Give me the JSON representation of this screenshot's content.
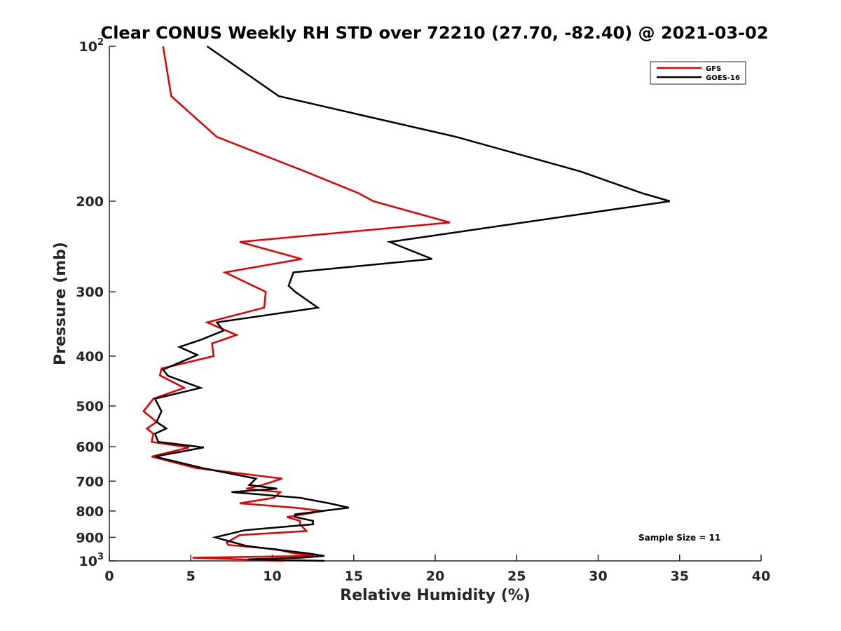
{
  "chart_data": {
    "type": "line",
    "title": "Clear CONUS Weekly RH STD over 72210 (27.70, -82.40) @ 2021-03-02",
    "xlabel": "Relative Humidity (%)",
    "ylabel": "Pressure (mb)",
    "xlim": [
      0,
      40
    ],
    "ylim": [
      100,
      1000
    ],
    "y_scale": "log",
    "y_reversed": true,
    "x_ticks": [
      "0",
      "5",
      "10",
      "15",
      "20",
      "25",
      "30",
      "35",
      "40"
    ],
    "y_ticks": [
      {
        "value": 100,
        "base": "10",
        "exp": "2"
      },
      {
        "value": 200,
        "label": "200"
      },
      {
        "value": 300,
        "label": "300"
      },
      {
        "value": 400,
        "label": "400"
      },
      {
        "value": 500,
        "label": "500"
      },
      {
        "value": 600,
        "label": "600"
      },
      {
        "value": 700,
        "label": "700"
      },
      {
        "value": 800,
        "label": "800"
      },
      {
        "value": 900,
        "label": "900"
      },
      {
        "value": 1000,
        "base": "10",
        "exp": "3"
      }
    ],
    "grid": false,
    "legend_position": "top-right",
    "annotation": "Sample Size = 11",
    "series": [
      {
        "name": "GFS",
        "color": "#e00000",
        "points": [
          [
            3.3,
            100
          ],
          [
            3.8,
            125
          ],
          [
            6.6,
            150
          ],
          [
            12.0,
            175
          ],
          [
            15.3,
            193
          ],
          [
            16.2,
            200
          ],
          [
            20.9,
            220
          ],
          [
            8.0,
            240
          ],
          [
            11.8,
            259
          ],
          [
            7.1,
            275
          ],
          [
            9.6,
            300
          ],
          [
            9.5,
            322
          ],
          [
            6.0,
            344
          ],
          [
            7.8,
            364
          ],
          [
            6.3,
            378
          ],
          [
            6.4,
            400
          ],
          [
            3.2,
            423
          ],
          [
            3.1,
            436
          ],
          [
            4.6,
            461
          ],
          [
            2.7,
            484
          ],
          [
            2.1,
            512
          ],
          [
            2.9,
            537
          ],
          [
            2.3,
            553
          ],
          [
            2.7,
            566
          ],
          [
            2.6,
            587
          ],
          [
            4.9,
            602
          ],
          [
            2.6,
            627
          ],
          [
            5.3,
            660
          ],
          [
            10.6,
            692
          ],
          [
            9.4,
            712
          ],
          [
            8.4,
            724
          ],
          [
            10.5,
            735
          ],
          [
            10.1,
            754
          ],
          [
            8.0,
            773
          ],
          [
            11.4,
            788
          ],
          [
            13.1,
            800
          ],
          [
            10.9,
            822
          ],
          [
            11.7,
            836
          ],
          [
            11.7,
            849
          ],
          [
            12.1,
            875
          ],
          [
            8.0,
            891
          ],
          [
            7.2,
            921
          ],
          [
            7.3,
            931
          ],
          [
            10.2,
            949
          ],
          [
            11.3,
            966
          ],
          [
            12.6,
            978
          ],
          [
            5.1,
            986
          ],
          [
            8.0,
            993
          ],
          [
            10.7,
            1000
          ]
        ]
      },
      {
        "name": "GOES-16",
        "color": "#000000",
        "points": [
          [
            6.0,
            100
          ],
          [
            10.4,
            125
          ],
          [
            21.3,
            150
          ],
          [
            28.9,
            175
          ],
          [
            32.7,
            193
          ],
          [
            34.4,
            200
          ],
          [
            17.2,
            240
          ],
          [
            19.8,
            259
          ],
          [
            11.3,
            275
          ],
          [
            11.0,
            292
          ],
          [
            11.4,
            300
          ],
          [
            12.8,
            322
          ],
          [
            6.6,
            344
          ],
          [
            7.0,
            357
          ],
          [
            5.6,
            372
          ],
          [
            4.3,
            384
          ],
          [
            5.4,
            398
          ],
          [
            3.3,
            425
          ],
          [
            3.6,
            437
          ],
          [
            5.6,
            461
          ],
          [
            2.8,
            484
          ],
          [
            3.2,
            512
          ],
          [
            2.9,
            537
          ],
          [
            3.5,
            553
          ],
          [
            2.8,
            566
          ],
          [
            3.0,
            587
          ],
          [
            5.8,
            602
          ],
          [
            2.8,
            627
          ],
          [
            5.7,
            660
          ],
          [
            9.0,
            692
          ],
          [
            8.6,
            712
          ],
          [
            10.3,
            724
          ],
          [
            7.5,
            735
          ],
          [
            11.7,
            754
          ],
          [
            13.5,
            773
          ],
          [
            14.7,
            788
          ],
          [
            11.4,
            812
          ],
          [
            11.4,
            822
          ],
          [
            12.5,
            836
          ],
          [
            12.5,
            849
          ],
          [
            8.3,
            872
          ],
          [
            6.5,
            900
          ],
          [
            8.4,
            935
          ],
          [
            10.0,
            949
          ],
          [
            12.1,
            966
          ],
          [
            13.2,
            978
          ],
          [
            11.8,
            986
          ],
          [
            8.5,
            993
          ],
          [
            13.2,
            1000
          ]
        ]
      }
    ]
  }
}
